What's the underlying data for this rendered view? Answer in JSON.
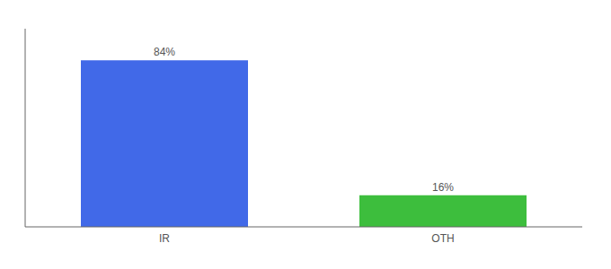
{
  "chart_data": {
    "type": "bar",
    "categories": [
      "IR",
      "OTH"
    ],
    "values": [
      84,
      16
    ],
    "value_labels": [
      "84%",
      "16%"
    ],
    "colors": [
      "#4169e8",
      "#3dbe3d"
    ],
    "ylim": [
      0,
      100
    ],
    "data_labels": true,
    "tick_labels": "x"
  }
}
